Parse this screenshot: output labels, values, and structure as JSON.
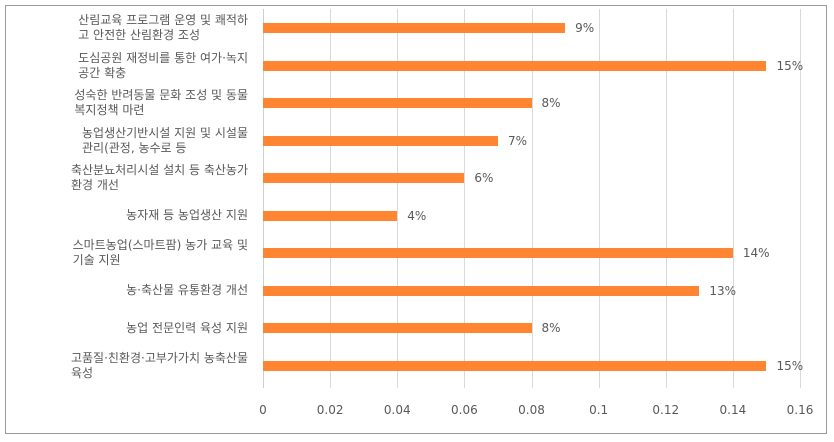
{
  "chart_data": {
    "type": "bar",
    "orientation": "horizontal",
    "title": "",
    "xlabel": "",
    "ylabel": "",
    "xlim": [
      0,
      0.16
    ],
    "grid": true,
    "legend": null,
    "bar_color": "#ff8533",
    "categories": [
      "산림교육 프로그램 운영 및 쾌적하\n고 안전한 산림환경 조성",
      "도심공원 재정비를 통한 여가·녹지\n공간 확충",
      "성숙한 반려동물 문화 조성 및 동물\n복지정책 마련",
      "농업생산기반시설 지원 및 시설물\n관리(관정, 농수로 등",
      "축산분뇨처리시설 설치 등 축산농가\n환경 개선",
      "농자재 등 농업생산 지원",
      "스마트농업(스마트팜) 농가 교육 및\n기술 지원",
      "농·축산물 유통환경 개선",
      "농업 전문인력 육성 지원",
      "고품질·친환경·고부가가치 농축산물\n육성"
    ],
    "values": [
      0.09,
      0.15,
      0.08,
      0.07,
      0.06,
      0.04,
      0.14,
      0.13,
      0.08,
      0.15
    ],
    "data_labels": [
      "9%",
      "15%",
      "8%",
      "7%",
      "6%",
      "4%",
      "14%",
      "13%",
      "8%",
      "15%"
    ],
    "x_ticks": [
      "0",
      "0.02",
      "0.04",
      "0.06",
      "0.08",
      "0.1",
      "0.12",
      "0.14",
      "0.16"
    ]
  }
}
